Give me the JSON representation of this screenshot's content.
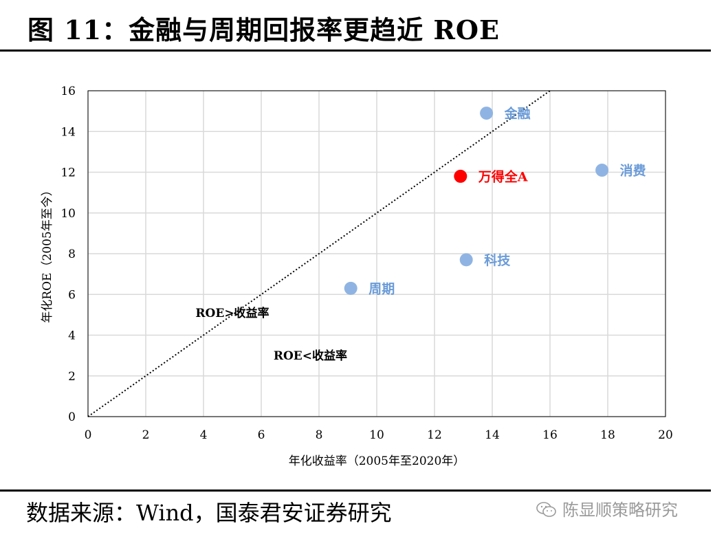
{
  "header": {
    "title": "图 11：金融与周期回报率更趋近 ROE"
  },
  "footer": {
    "source": "数据来源：Wind，国泰君安证券研究"
  },
  "watermark": {
    "text": "陈显顺策略研究",
    "icon": "wechat-icon"
  },
  "colors": {
    "point": "#8fb4e3",
    "highlight": "#ff0000",
    "label": "#6a9bd8"
  },
  "chart_data": {
    "type": "scatter",
    "title": "金融与周期回报率更趋近 ROE",
    "xlabel": "年化收益率（2005年至2020年）",
    "ylabel": "年化ROE（2005年至今）",
    "xlim": [
      0,
      20
    ],
    "ylim": [
      0,
      16
    ],
    "xticks": [
      0,
      2,
      4,
      6,
      8,
      10,
      12,
      14,
      16,
      18,
      20
    ],
    "yticks": [
      0,
      2,
      4,
      6,
      8,
      10,
      12,
      14,
      16
    ],
    "grid": true,
    "reference_line": {
      "label": "y = x",
      "from": [
        0,
        0
      ],
      "to": [
        16,
        16
      ],
      "style": "dotted"
    },
    "points": [
      {
        "name": "金融",
        "x": 13.8,
        "y": 14.9,
        "highlight": false
      },
      {
        "name": "万得全A",
        "x": 12.9,
        "y": 11.8,
        "highlight": true
      },
      {
        "name": "消费",
        "x": 17.8,
        "y": 12.1,
        "highlight": false
      },
      {
        "name": "科技",
        "x": 13.1,
        "y": 7.7,
        "highlight": false
      },
      {
        "name": "周期",
        "x": 9.1,
        "y": 6.3,
        "highlight": false
      }
    ],
    "annotations": [
      {
        "text": "ROE>收益率",
        "x": 5,
        "y": 4.9
      },
      {
        "text": "ROE<收益率",
        "x": 7.7,
        "y": 2.8
      }
    ]
  }
}
